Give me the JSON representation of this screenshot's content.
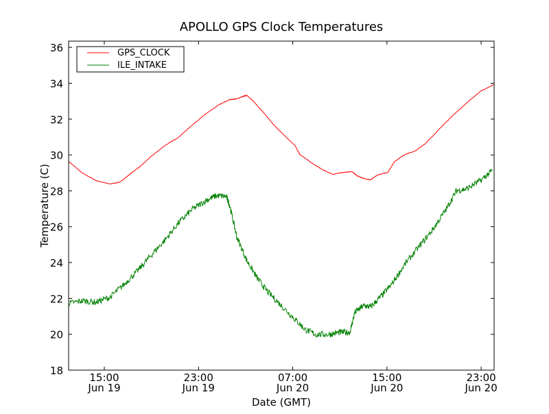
{
  "chart_data": {
    "type": "line",
    "title": "APOLLO GPS Clock Temperatures",
    "xlabel": "Date (GMT)",
    "ylabel": "Temperature (C)",
    "x_units": "hours since Jun 19 00:00 GMT",
    "xlim": [
      11.97,
      48.1
    ],
    "ylim": [
      18,
      36.35
    ],
    "yticks": [
      18,
      20,
      22,
      24,
      26,
      28,
      30,
      32,
      34,
      36
    ],
    "xticks": [
      {
        "x": 15,
        "time": "15:00",
        "date": "Jun 19"
      },
      {
        "x": 23,
        "time": "23:00",
        "date": "Jun 19"
      },
      {
        "x": 31,
        "time": "07:00",
        "date": "Jun 20"
      },
      {
        "x": 39,
        "time": "15:00",
        "date": "Jun 20"
      },
      {
        "x": 47,
        "time": "23:00",
        "date": "Jun 20"
      }
    ],
    "grid": false,
    "legend_position": "top-left",
    "series": [
      {
        "name": "GPS_CLOCK",
        "color": "#ff0000",
        "x": [
          11.97,
          13.14,
          14.3,
          15.47,
          16.34,
          17.21,
          18.09,
          18.96,
          20.13,
          21.29,
          22.46,
          23.62,
          24.79,
          25.66,
          26.25,
          26.83,
          27.12,
          27.7,
          28.58,
          29.45,
          30.33,
          31.2,
          31.61,
          32.66,
          33.53,
          34.41,
          35.28,
          36.04,
          36.45,
          37.03,
          37.61,
          38.19,
          39.07,
          39.65,
          40.52,
          41.4,
          42.27,
          43.44,
          44.6,
          45.77,
          46.93,
          48.1
        ],
        "y": [
          29.64,
          28.99,
          28.57,
          28.38,
          28.49,
          28.95,
          29.38,
          29.91,
          30.52,
          30.98,
          31.67,
          32.29,
          32.82,
          33.09,
          33.13,
          33.28,
          33.32,
          32.97,
          32.32,
          31.63,
          31.06,
          30.52,
          30.03,
          29.53,
          29.18,
          28.92,
          29.03,
          29.07,
          28.84,
          28.69,
          28.61,
          28.88,
          29.03,
          29.64,
          30.03,
          30.22,
          30.64,
          31.44,
          32.21,
          32.9,
          33.55,
          33.93
        ]
      },
      {
        "name": "ILE_INTAKE",
        "color": "#008000",
        "x": [
          11.97,
          13.14,
          14.3,
          15.47,
          16.63,
          17.8,
          18.96,
          20.13,
          21.29,
          22.46,
          23.62,
          24.5,
          25.37,
          25.66,
          26.25,
          27.12,
          27.99,
          28.87,
          30.03,
          31.2,
          32.07,
          32.95,
          34.11,
          34.99,
          35.86,
          36.27,
          37.03,
          37.61,
          38.48,
          39.36,
          40.52,
          41.69,
          42.86,
          44.02,
          44.9,
          45.77,
          46.93,
          47.97
        ],
        "y": [
          21.72,
          21.87,
          21.79,
          22.06,
          22.75,
          23.52,
          24.4,
          25.24,
          26.2,
          26.96,
          27.46,
          27.73,
          27.69,
          27.15,
          25.43,
          24.09,
          23.13,
          22.37,
          21.6,
          20.83,
          20.26,
          19.99,
          19.99,
          20.11,
          20.11,
          21.22,
          21.6,
          21.52,
          22.1,
          22.75,
          23.9,
          24.86,
          25.81,
          26.96,
          28.0,
          28.11,
          28.57,
          29.14
        ]
      }
    ]
  }
}
